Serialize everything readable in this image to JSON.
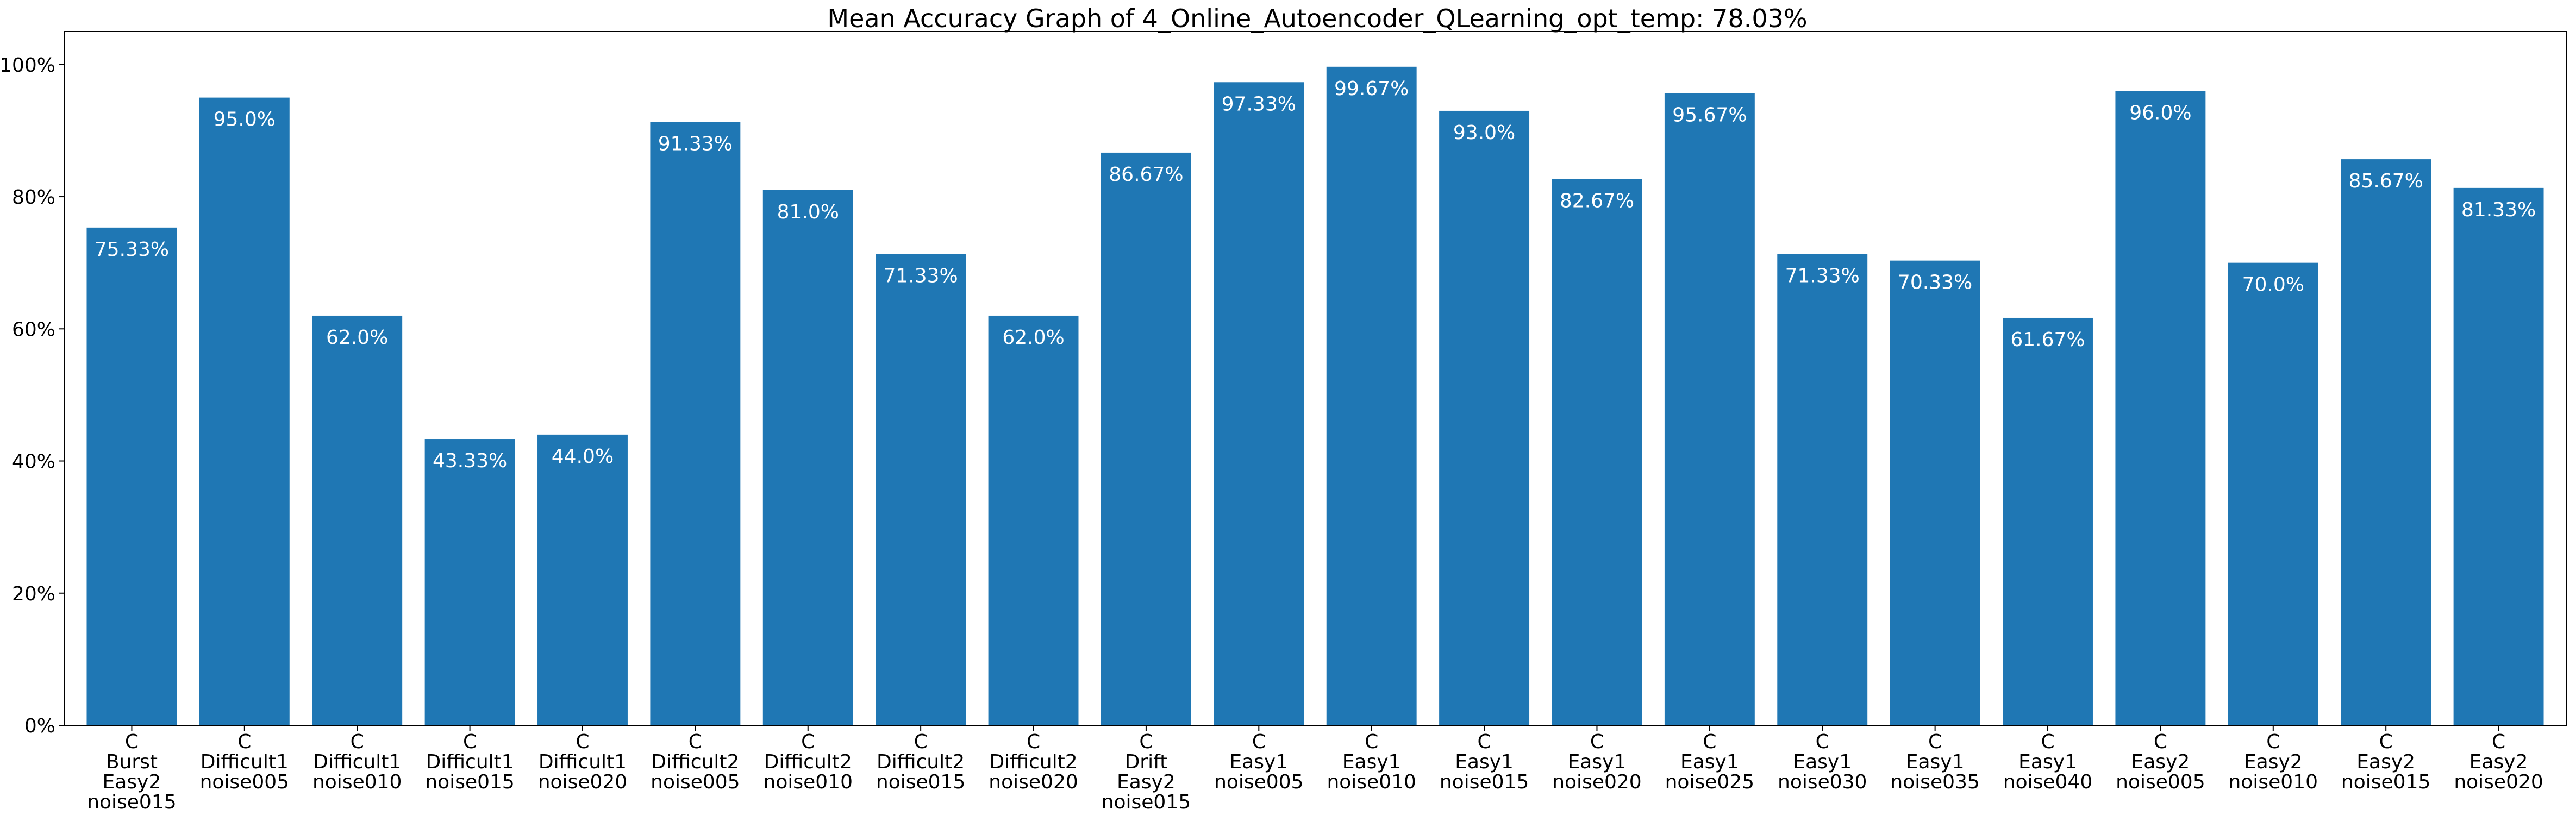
{
  "chart_data": {
    "type": "bar",
    "title": "Mean Accuracy Graph of 4_Online_Autoencoder_QLearning_opt_temp: 78.03%",
    "xlabel": "",
    "ylabel": "",
    "ylim": [
      0,
      105
    ],
    "yticks": [
      0,
      20,
      40,
      60,
      80,
      100
    ],
    "ytick_labels": [
      "0%",
      "20%",
      "40%",
      "60%",
      "80%",
      "100%"
    ],
    "grid": false,
    "bar_color": "#1f77b4",
    "categories": [
      [
        "C",
        "Burst",
        "Easy2",
        "noise015"
      ],
      [
        "C",
        "Difficult1",
        "noise005"
      ],
      [
        "C",
        "Difficult1",
        "noise010"
      ],
      [
        "C",
        "Difficult1",
        "noise015"
      ],
      [
        "C",
        "Difficult1",
        "noise020"
      ],
      [
        "C",
        "Difficult2",
        "noise005"
      ],
      [
        "C",
        "Difficult2",
        "noise010"
      ],
      [
        "C",
        "Difficult2",
        "noise015"
      ],
      [
        "C",
        "Difficult2",
        "noise020"
      ],
      [
        "C",
        "Drift",
        "Easy2",
        "noise015"
      ],
      [
        "C",
        "Easy1",
        "noise005"
      ],
      [
        "C",
        "Easy1",
        "noise010"
      ],
      [
        "C",
        "Easy1",
        "noise015"
      ],
      [
        "C",
        "Easy1",
        "noise020"
      ],
      [
        "C",
        "Easy1",
        "noise025"
      ],
      [
        "C",
        "Easy1",
        "noise030"
      ],
      [
        "C",
        "Easy1",
        "noise035"
      ],
      [
        "C",
        "Easy1",
        "noise040"
      ],
      [
        "C",
        "Easy2",
        "noise005"
      ],
      [
        "C",
        "Easy2",
        "noise010"
      ],
      [
        "C",
        "Easy2",
        "noise015"
      ],
      [
        "C",
        "Easy2",
        "noise020"
      ]
    ],
    "values": [
      75.33,
      95.0,
      62.0,
      43.33,
      44.0,
      91.33,
      81.0,
      71.33,
      62.0,
      86.67,
      97.33,
      99.67,
      93.0,
      82.67,
      95.67,
      71.33,
      70.33,
      61.67,
      96.0,
      70.0,
      85.67,
      81.33
    ],
    "value_labels": [
      "75.33%",
      "95.0%",
      "62.0%",
      "43.33%",
      "44.0%",
      "91.33%",
      "81.0%",
      "71.33%",
      "62.0%",
      "86.67%",
      "97.33%",
      "99.67%",
      "93.0%",
      "82.67%",
      "95.67%",
      "71.33%",
      "70.33%",
      "61.67%",
      "96.0%",
      "70.0%",
      "85.67%",
      "81.33%"
    ]
  }
}
